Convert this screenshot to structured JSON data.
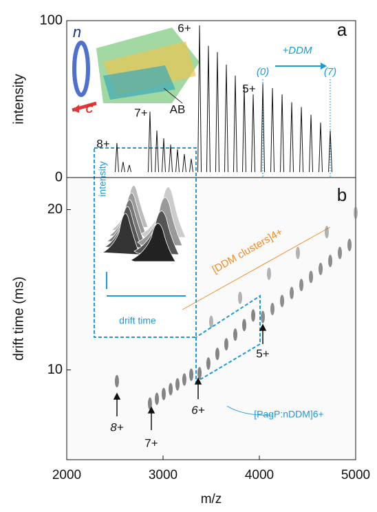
{
  "chart_data": [
    {
      "type": "stem",
      "ylabel": "intensity",
      "xlim": [
        2000,
        5000
      ],
      "ylim": [
        0,
        100
      ],
      "yticks": [
        0,
        100
      ],
      "color": "#111111",
      "x": [
        2521,
        2585,
        2650,
        2864,
        2936,
        3007,
        3079,
        3150,
        3221,
        3293,
        3379,
        3471,
        3564,
        3657,
        3750,
        3843,
        3936,
        4036,
        4136,
        4236,
        4336,
        4436,
        4536,
        4636,
        4736
      ],
      "values": [
        22,
        10,
        8,
        42,
        30,
        25,
        21,
        18,
        15,
        12,
        97,
        84,
        80,
        72,
        65,
        58,
        53,
        60,
        57,
        53,
        48,
        45,
        40,
        35,
        30
      ],
      "annotations": [
        "a",
        "8+",
        "7+",
        "6+",
        "5+",
        "(0)",
        "(7)",
        "+DDM",
        "n",
        "c",
        "AB"
      ]
    },
    {
      "type": "scatter",
      "xlabel": "m/z",
      "ylabel": "drift time (ms)",
      "xlim": [
        2000,
        5000
      ],
      "ylim": [
        4.4,
        22
      ],
      "xticks": [
        2000,
        3000,
        4000,
        5000
      ],
      "yticks": [
        10,
        20
      ],
      "series": [
        {
          "color": "#222222",
          "x": [
            2521
          ],
          "values": [
            9.3
          ]
        },
        {
          "color": "#222222",
          "x": [
            2864,
            2936,
            3007,
            3079,
            3150,
            3221,
            3293
          ],
          "values": [
            7.9,
            8.2,
            8.5,
            8.8,
            9.1,
            9.4,
            9.7
          ]
        },
        {
          "color": "#222222",
          "x": [
            3379,
            3471,
            3564,
            3657,
            3750,
            3843,
            3936
          ],
          "values": [
            9.8,
            10.4,
            11.0,
            11.6,
            12.2,
            12.8,
            13.4
          ]
        },
        {
          "color": "#333333",
          "x": [
            4036,
            4136,
            4236,
            4336,
            4436,
            4536,
            4636,
            4736,
            4836,
            4936
          ],
          "values": [
            13.3,
            13.8,
            14.3,
            14.8,
            15.3,
            15.8,
            16.3,
            16.8,
            17.3,
            17.8
          ]
        },
        {
          "color": "#777777",
          "x": [
            3500,
            3800,
            4100,
            4400,
            4700,
            5000
          ],
          "values": [
            13.0,
            14.5,
            16.0,
            17.3,
            18.6,
            19.8
          ]
        }
      ],
      "annotations": [
        "b",
        "8+",
        "7+",
        "6+",
        "5+",
        "[DDM clusters]4+",
        "[PagP:nDDM]6+",
        "intensity",
        "drift time"
      ]
    }
  ]
}
